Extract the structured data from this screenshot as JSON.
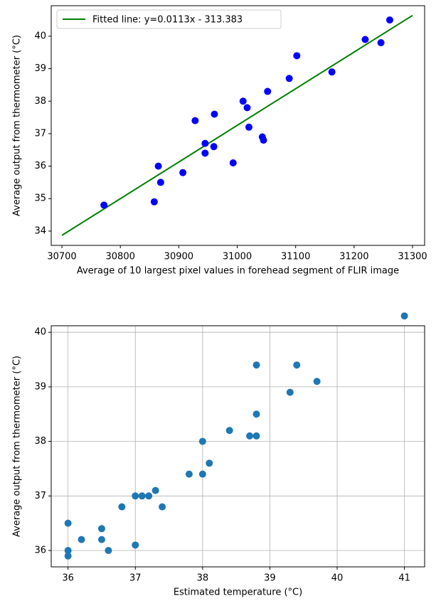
{
  "chart_data": [
    {
      "type": "scatter",
      "xlabel": "Average of 10 largest pixel values in forehead segment of FLIR image",
      "ylabel": "Average output from thermometer (°C)",
      "xlim": [
        30681.7,
        31320.7
      ],
      "ylim": [
        33.56,
        40.94
      ],
      "xticks": [
        30700,
        30800,
        30900,
        31000,
        31100,
        31200,
        31300
      ],
      "yticks": [
        34,
        35,
        36,
        37,
        38,
        39,
        40
      ],
      "grid": false,
      "legend": "upper left",
      "color": "#0000ff",
      "x": [
        30772,
        30858,
        30865,
        30869,
        30907,
        30928,
        30945,
        30945,
        30960,
        30961,
        30993,
        31010,
        31017,
        31020,
        31043,
        31045,
        31052,
        31089,
        31102,
        31162,
        31219,
        31246,
        31261
      ],
      "values": [
        34.8,
        34.9,
        36.0,
        35.5,
        35.8,
        37.4,
        36.7,
        36.4,
        36.6,
        37.6,
        36.1,
        38.0,
        37.8,
        37.2,
        36.9,
        36.8,
        38.3,
        38.7,
        39.4,
        38.9,
        39.9,
        39.8,
        40.5
      ],
      "fit": {
        "name": "Fitted line: y=0.0113x - 313.383",
        "color": "#008000",
        "x": [
          30700,
          31300
        ],
        "y": [
          33.87,
          40.64
        ]
      }
    },
    {
      "type": "scatter",
      "xlabel": "Estimated temperature (°C)",
      "ylabel": "Average output from thermometer (°C)",
      "xlim": [
        35.75,
        41.3
      ],
      "ylim": [
        35.7,
        40.12
      ],
      "xticks": [
        36,
        37,
        38,
        39,
        40,
        41
      ],
      "yticks": [
        36,
        37,
        38,
        39,
        40
      ],
      "grid": true,
      "color": "#1f77b4",
      "x": [
        36,
        36,
        36,
        36.2,
        36.5,
        36.5,
        36.6,
        36.8,
        37.0,
        37.0,
        37.1,
        37.2,
        37.3,
        37.4,
        37.8,
        38.0,
        38.0,
        38.1,
        38.4,
        38.7,
        38.8,
        38.8,
        38.8,
        39.3,
        39.4,
        39.7,
        41.0
      ],
      "values": [
        36.5,
        36.0,
        35.9,
        36.2,
        36.4,
        36.2,
        36.0,
        36.8,
        37.0,
        36.1,
        37.0,
        37.0,
        37.1,
        36.8,
        37.4,
        37.4,
        38.0,
        37.6,
        38.2,
        38.1,
        38.1,
        38.5,
        39.4,
        38.9,
        39.4,
        39.1,
        40.3
      ]
    }
  ]
}
